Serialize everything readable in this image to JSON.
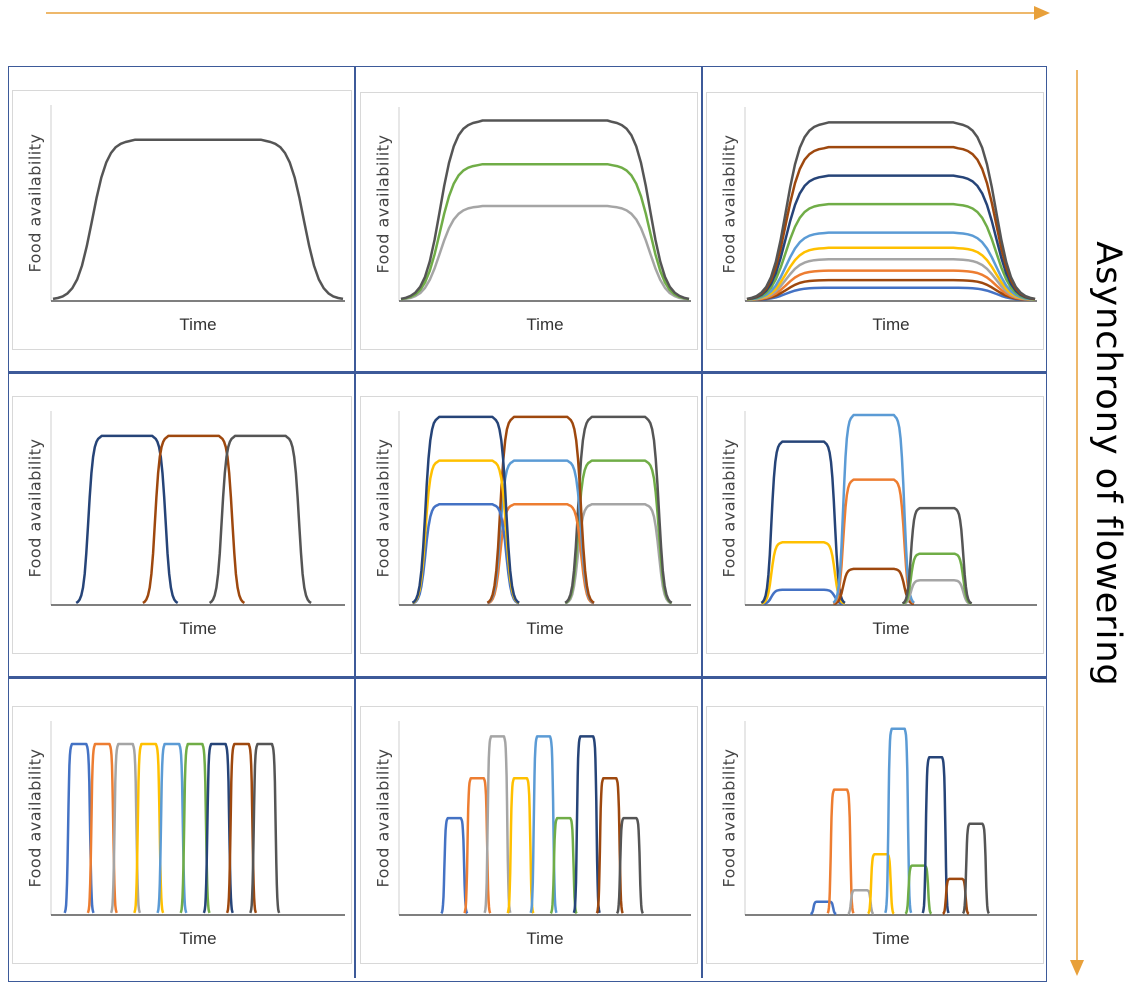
{
  "side_label": "Asynchrony of flowering",
  "colors": {
    "arrow": "#e8a03a",
    "grid_line": "#3d5a99",
    "axis": "#555555",
    "gray_dark": "#555555",
    "brown": "#9e480e",
    "navy": "#264478",
    "green": "#70ad47",
    "light_blue": "#5b9bd5",
    "yellow": "#ffc000",
    "light_gray": "#a5a5a5",
    "orange": "#ed7d31",
    "blue": "#4472c4"
  },
  "panels": [
    {
      "ylabel": "Food availability",
      "xlabel": "Time",
      "curves": [
        {
          "color": "gray_dark",
          "start": 0.0,
          "end": 1.0,
          "height": 0.84
        }
      ]
    },
    {
      "ylabel": "Food availability",
      "xlabel": "Time",
      "curves": [
        {
          "color": "light_gray",
          "start": 0.0,
          "end": 1.0,
          "height": 0.5
        },
        {
          "color": "green",
          "start": 0.0,
          "end": 1.0,
          "height": 0.72
        },
        {
          "color": "gray_dark",
          "start": 0.0,
          "end": 1.0,
          "height": 0.95
        }
      ]
    },
    {
      "ylabel": "Food availability",
      "xlabel": "Time",
      "curves": [
        {
          "color": "blue",
          "start": 0.0,
          "end": 1.0,
          "height": 0.07
        },
        {
          "color": "brown",
          "start": 0.0,
          "end": 1.0,
          "height": 0.11
        },
        {
          "color": "orange",
          "start": 0.0,
          "end": 1.0,
          "height": 0.16
        },
        {
          "color": "light_gray",
          "start": 0.0,
          "end": 1.0,
          "height": 0.22
        },
        {
          "color": "yellow",
          "start": 0.0,
          "end": 1.0,
          "height": 0.28
        },
        {
          "color": "light_blue",
          "start": 0.0,
          "end": 1.0,
          "height": 0.36
        },
        {
          "color": "green",
          "start": 0.0,
          "end": 1.0,
          "height": 0.51
        },
        {
          "color": "navy",
          "start": 0.0,
          "end": 1.0,
          "height": 0.66
        },
        {
          "color": "brown",
          "start": 0.0,
          "end": 1.0,
          "height": 0.81
        },
        {
          "color": "gray_dark",
          "start": 0.0,
          "end": 1.0,
          "height": 0.94
        }
      ]
    },
    {
      "ylabel": "Food availability",
      "xlabel": "Time",
      "curves": [
        {
          "color": "navy",
          "start": 0.08,
          "end": 0.43,
          "height": 0.89
        },
        {
          "color": "brown",
          "start": 0.31,
          "end": 0.66,
          "height": 0.89
        },
        {
          "color": "gray_dark",
          "start": 0.54,
          "end": 0.89,
          "height": 0.89
        }
      ]
    },
    {
      "ylabel": "Food availability",
      "xlabel": "Time",
      "curves": [
        {
          "color": "light_gray",
          "start": 0.57,
          "end": 0.94,
          "height": 0.53
        },
        {
          "color": "green",
          "start": 0.57,
          "end": 0.94,
          "height": 0.76
        },
        {
          "color": "gray_dark",
          "start": 0.57,
          "end": 0.94,
          "height": 0.99
        },
        {
          "color": "orange",
          "start": 0.3,
          "end": 0.67,
          "height": 0.53
        },
        {
          "color": "light_blue",
          "start": 0.3,
          "end": 0.67,
          "height": 0.76
        },
        {
          "color": "brown",
          "start": 0.3,
          "end": 0.67,
          "height": 0.99
        },
        {
          "color": "blue",
          "start": 0.04,
          "end": 0.41,
          "height": 0.53
        },
        {
          "color": "yellow",
          "start": 0.04,
          "end": 0.41,
          "height": 0.76
        },
        {
          "color": "navy",
          "start": 0.04,
          "end": 0.41,
          "height": 0.99
        }
      ]
    },
    {
      "ylabel": "Food availability",
      "xlabel": "Time",
      "curves": [
        {
          "color": "blue",
          "start": 0.05,
          "end": 0.34,
          "height": 0.08
        },
        {
          "color": "yellow",
          "start": 0.05,
          "end": 0.34,
          "height": 0.33
        },
        {
          "color": "navy",
          "start": 0.05,
          "end": 0.34,
          "height": 0.86
        },
        {
          "color": "brown",
          "start": 0.3,
          "end": 0.58,
          "height": 0.19
        },
        {
          "color": "orange",
          "start": 0.3,
          "end": 0.58,
          "height": 0.66
        },
        {
          "color": "light_blue",
          "start": 0.3,
          "end": 0.58,
          "height": 1.0
        },
        {
          "color": "light_gray",
          "start": 0.54,
          "end": 0.78,
          "height": 0.13
        },
        {
          "color": "green",
          "start": 0.54,
          "end": 0.78,
          "height": 0.27
        },
        {
          "color": "gray_dark",
          "start": 0.54,
          "end": 0.78,
          "height": 0.51
        }
      ]
    },
    {
      "ylabel": "Food availability",
      "xlabel": "Time",
      "curves": [
        {
          "color": "blue",
          "start": 0.04,
          "end": 0.14,
          "height": 0.9
        },
        {
          "color": "orange",
          "start": 0.12,
          "end": 0.22,
          "height": 0.9
        },
        {
          "color": "light_gray",
          "start": 0.2,
          "end": 0.3,
          "height": 0.9
        },
        {
          "color": "yellow",
          "start": 0.28,
          "end": 0.38,
          "height": 0.9
        },
        {
          "color": "light_blue",
          "start": 0.36,
          "end": 0.46,
          "height": 0.9
        },
        {
          "color": "green",
          "start": 0.44,
          "end": 0.54,
          "height": 0.9
        },
        {
          "color": "navy",
          "start": 0.52,
          "end": 0.62,
          "height": 0.9
        },
        {
          "color": "brown",
          "start": 0.6,
          "end": 0.7,
          "height": 0.9
        },
        {
          "color": "gray_dark",
          "start": 0.68,
          "end": 0.78,
          "height": 0.9
        }
      ]
    },
    {
      "ylabel": "Food availability",
      "xlabel": "Time",
      "curves": [
        {
          "color": "blue",
          "start": 0.14,
          "end": 0.23,
          "height": 0.51
        },
        {
          "color": "orange",
          "start": 0.22,
          "end": 0.31,
          "height": 0.72
        },
        {
          "color": "light_gray",
          "start": 0.29,
          "end": 0.38,
          "height": 0.94
        },
        {
          "color": "yellow",
          "start": 0.37,
          "end": 0.46,
          "height": 0.72
        },
        {
          "color": "light_blue",
          "start": 0.45,
          "end": 0.54,
          "height": 0.94
        },
        {
          "color": "green",
          "start": 0.52,
          "end": 0.61,
          "height": 0.51
        },
        {
          "color": "navy",
          "start": 0.6,
          "end": 0.69,
          "height": 0.94
        },
        {
          "color": "brown",
          "start": 0.68,
          "end": 0.77,
          "height": 0.72
        },
        {
          "color": "gray_dark",
          "start": 0.75,
          "end": 0.84,
          "height": 0.51
        }
      ]
    },
    {
      "ylabel": "Food availability",
      "xlabel": "Time",
      "curves": [
        {
          "color": "blue",
          "start": 0.22,
          "end": 0.31,
          "height": 0.07
        },
        {
          "color": "orange",
          "start": 0.28,
          "end": 0.37,
          "height": 0.66
        },
        {
          "color": "light_gray",
          "start": 0.35,
          "end": 0.44,
          "height": 0.13
        },
        {
          "color": "yellow",
          "start": 0.42,
          "end": 0.51,
          "height": 0.32
        },
        {
          "color": "light_blue",
          "start": 0.48,
          "end": 0.57,
          "height": 0.98
        },
        {
          "color": "green",
          "start": 0.55,
          "end": 0.64,
          "height": 0.26
        },
        {
          "color": "navy",
          "start": 0.61,
          "end": 0.7,
          "height": 0.83
        },
        {
          "color": "brown",
          "start": 0.68,
          "end": 0.77,
          "height": 0.19
        },
        {
          "color": "gray_dark",
          "start": 0.75,
          "end": 0.84,
          "height": 0.48
        }
      ]
    }
  ]
}
